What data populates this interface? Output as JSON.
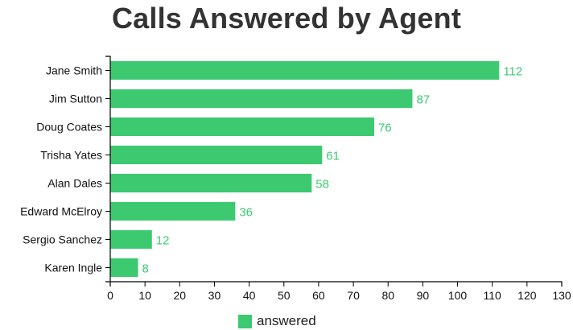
{
  "chart_data": {
    "type": "bar",
    "orientation": "horizontal",
    "title": "Calls Answered by Agent",
    "xlabel": "",
    "ylabel": "",
    "categories": [
      "Jane Smith",
      "Jim Sutton",
      "Doug Coates",
      "Trisha Yates",
      "Alan Dales",
      "Edward McElroy",
      "Sergio Sanchez",
      "Karen Ingle"
    ],
    "series": [
      {
        "name": "answered",
        "values": [
          112,
          87,
          76,
          61,
          58,
          36,
          12,
          8
        ],
        "color": "#3cc970"
      }
    ],
    "xlim": [
      0,
      130
    ],
    "xticks": [
      "0",
      "10",
      "20",
      "30",
      "40",
      "50",
      "60",
      "70",
      "80",
      "90",
      "100",
      "110",
      "120",
      "130"
    ],
    "grid": false,
    "data_labels": true,
    "legend_position": "bottom"
  },
  "colors": {
    "bar": "#3cc970",
    "label": "#3cc970",
    "axis": "#000000",
    "title": "#333333"
  }
}
